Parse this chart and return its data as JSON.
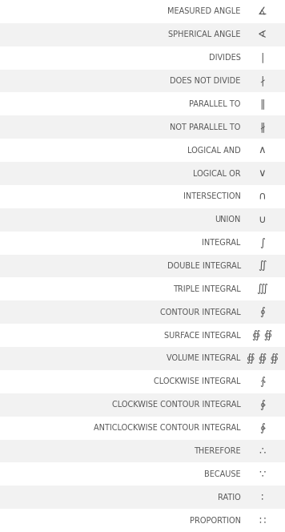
{
  "rows": [
    [
      "MEASURED ANGLE",
      "∡"
    ],
    [
      "SPHERICAL ANGLE",
      "∢"
    ],
    [
      "DIVIDES",
      "∣"
    ],
    [
      "DOES NOT DIVIDE",
      "∤"
    ],
    [
      "PARALLEL TO",
      "∥"
    ],
    [
      "NOT PARALLEL TO",
      "∦"
    ],
    [
      "LOGICAL AND",
      "∧"
    ],
    [
      "LOGICAL OR",
      "∨"
    ],
    [
      "INTERSECTION",
      "∩"
    ],
    [
      "UNION",
      "∪"
    ],
    [
      "INTEGRAL",
      "∫"
    ],
    [
      "DOUBLE INTEGRAL",
      "∬"
    ],
    [
      "TRIPLE INTEGRAL",
      "∭"
    ],
    [
      "CONTOUR INTEGRAL",
      "∮"
    ],
    [
      "SURFACE INTEGRAL",
      "∯ ∯"
    ],
    [
      "VOLUME INTEGRAL",
      "∯ ∯ ∯"
    ],
    [
      "CLOCKWISE INTEGRAL",
      "∱"
    ],
    [
      "CLOCKWISE CONTOUR INTEGRAL",
      "∲"
    ],
    [
      "ANTICLOCKWISE CONTOUR INTEGRAL",
      "∳"
    ],
    [
      "THEREFORE",
      "∴"
    ],
    [
      "BECAUSE",
      "∵"
    ],
    [
      "RATIO",
      "∶"
    ],
    [
      "PROPORTION",
      "∷"
    ]
  ],
  "bg_colors": [
    "#ffffff",
    "#f2f2f2"
  ],
  "text_color": "#555555",
  "symbol_color": "#555555",
  "font_size": 7.0,
  "symbol_font_size": 9.5,
  "fig_width": 3.56,
  "fig_height": 6.64,
  "dpi": 100
}
